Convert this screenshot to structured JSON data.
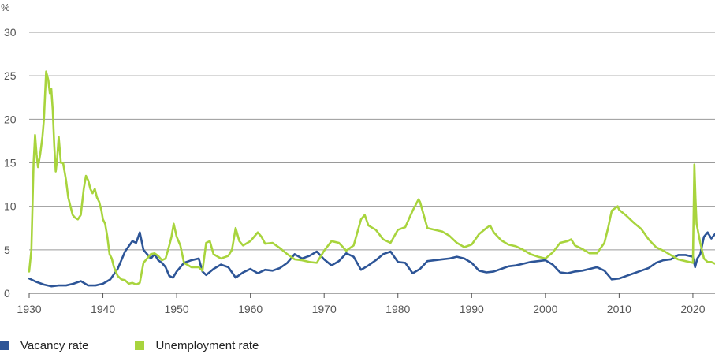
{
  "chart_data": {
    "type": "line",
    "title": "",
    "xlabel": "",
    "ylabel": "%",
    "xlim": [
      1930,
      2023
    ],
    "ylim": [
      0,
      30
    ],
    "grid": true,
    "legend_position": "bottom-left",
    "x_ticks": [
      1930,
      1940,
      1950,
      1960,
      1970,
      1980,
      1990,
      2000,
      2010,
      2020
    ],
    "y_ticks": [
      0,
      5,
      10,
      15,
      20,
      25,
      30
    ],
    "series": [
      {
        "name": "Vacancy rate",
        "color": "#2d5597",
        "x": [
          1930,
          1931,
          1932,
          1933,
          1934,
          1935,
          1936,
          1937,
          1938,
          1939,
          1940,
          1941,
          1942,
          1943,
          1944,
          1944.5,
          1945,
          1945.5,
          1946,
          1946.5,
          1947,
          1947.5,
          1948,
          1948.5,
          1949,
          1949.5,
          1950,
          1951,
          1952,
          1953,
          1953.5,
          1954,
          1955,
          1956,
          1957,
          1958,
          1959,
          1960,
          1961,
          1962,
          1963,
          1964,
          1965,
          1966,
          1967,
          1968,
          1969,
          1970,
          1971,
          1972,
          1973,
          1974,
          1975,
          1976,
          1977,
          1978,
          1979,
          1980,
          1981,
          1982,
          1983,
          1984,
          1985,
          1986,
          1987,
          1988,
          1989,
          1990,
          1991,
          1992,
          1993,
          1994,
          1995,
          1996,
          1997,
          1998,
          1999,
          2000,
          2001,
          2002,
          2003,
          2004,
          2005,
          2006,
          2007,
          2008,
          2009,
          2010,
          2011,
          2012,
          2013,
          2014,
          2015,
          2016,
          2017,
          2018,
          2019,
          2020,
          2020.3,
          2020.6,
          2021,
          2021.5,
          2022,
          2022.5,
          2023
        ],
        "values": [
          1.7,
          1.3,
          1.0,
          0.8,
          0.9,
          0.9,
          1.1,
          1.4,
          0.9,
          0.9,
          1.1,
          1.6,
          2.8,
          4.8,
          6.0,
          5.8,
          7.0,
          5.0,
          4.5,
          4.0,
          4.5,
          3.8,
          3.5,
          3.0,
          2.0,
          1.8,
          2.5,
          3.5,
          3.8,
          4.0,
          2.5,
          2.1,
          2.8,
          3.3,
          3.0,
          1.8,
          2.4,
          2.8,
          2.3,
          2.7,
          2.6,
          2.9,
          3.5,
          4.5,
          4.0,
          4.3,
          4.8,
          3.9,
          3.2,
          3.7,
          4.6,
          4.2,
          2.7,
          3.2,
          3.8,
          4.5,
          4.8,
          3.6,
          3.5,
          2.3,
          2.8,
          3.7,
          3.8,
          3.9,
          4.0,
          4.2,
          4.0,
          3.5,
          2.6,
          2.4,
          2.5,
          2.8,
          3.1,
          3.2,
          3.4,
          3.6,
          3.7,
          3.8,
          3.3,
          2.4,
          2.3,
          2.5,
          2.6,
          2.8,
          3.0,
          2.6,
          1.6,
          1.7,
          2.0,
          2.3,
          2.6,
          2.9,
          3.5,
          3.8,
          3.9,
          4.4,
          4.4,
          4.2,
          3.0,
          4.0,
          4.5,
          6.5,
          7.0,
          6.3,
          6.8
        ]
      },
      {
        "name": "Unemployment rate",
        "color": "#a8d43d",
        "x": [
          1930,
          1930.3,
          1930.6,
          1930.8,
          1931,
          1931.2,
          1931.5,
          1931.8,
          1932,
          1932.3,
          1932.6,
          1932.8,
          1933,
          1933.2,
          1933.4,
          1933.6,
          1933.8,
          1934,
          1934.3,
          1934.6,
          1934.8,
          1935,
          1935.3,
          1935.6,
          1935.9,
          1936.2,
          1936.6,
          1937,
          1937.4,
          1937.7,
          1938,
          1938.3,
          1938.6,
          1938.9,
          1939.2,
          1939.5,
          1939.8,
          1940,
          1940.3,
          1940.6,
          1940.9,
          1941.2,
          1941.5,
          1942,
          1942.5,
          1943,
          1943.5,
          1944,
          1944.5,
          1945,
          1945.5,
          1946,
          1946.5,
          1947,
          1947.5,
          1948,
          1948.5,
          1949,
          1949.3,
          1949.6,
          1950,
          1950.5,
          1951,
          1952,
          1953,
          1953.5,
          1954,
          1954.5,
          1955,
          1956,
          1957,
          1957.5,
          1958,
          1958.5,
          1959,
          1960,
          1961,
          1961.5,
          1962,
          1963,
          1964,
          1965,
          1966,
          1967,
          1968,
          1969,
          1970,
          1971,
          1972,
          1973,
          1974,
          1975,
          1975.5,
          1976,
          1977,
          1978,
          1979,
          1980,
          1981,
          1982,
          1982.8,
          1983,
          1984,
          1985,
          1986,
          1987,
          1988,
          1989,
          1990,
          1991,
          1992,
          1992.5,
          1993,
          1994,
          1995,
          1996,
          1997,
          1998,
          1999,
          2000,
          2001,
          2002,
          2003,
          2003.5,
          2004,
          2005,
          2006,
          2007,
          2008,
          2008.5,
          2009,
          2009.8,
          2010,
          2011,
          2012,
          2013,
          2014,
          2015,
          2016,
          2017,
          2018,
          2019,
          2020,
          2020.2,
          2020.35,
          2020.5,
          2020.8,
          2021,
          2021.5,
          2022,
          2022.5,
          2023
        ],
        "values": [
          2.5,
          5.0,
          15.0,
          18.2,
          16.0,
          14.5,
          16.0,
          18.0,
          20.0,
          25.5,
          24.5,
          23.0,
          23.5,
          21.0,
          17.0,
          14.0,
          15.5,
          18.0,
          15.0,
          15.0,
          14.0,
          13.0,
          11.0,
          10.0,
          9.0,
          8.7,
          8.5,
          9.0,
          12.0,
          13.5,
          13.0,
          12.0,
          11.5,
          12.0,
          11.0,
          10.5,
          9.5,
          8.5,
          8.0,
          6.5,
          4.5,
          4.0,
          3.0,
          2.0,
          1.6,
          1.5,
          1.1,
          1.2,
          1.0,
          1.2,
          3.5,
          4.0,
          4.5,
          4.6,
          4.3,
          3.8,
          4.0,
          5.5,
          6.5,
          8.0,
          6.5,
          5.5,
          3.5,
          3.0,
          3.0,
          2.6,
          5.8,
          6.0,
          4.5,
          4.0,
          4.3,
          5.0,
          7.5,
          6.0,
          5.5,
          6.0,
          7.0,
          6.5,
          5.7,
          5.8,
          5.2,
          4.5,
          3.9,
          3.8,
          3.6,
          3.5,
          4.9,
          6.0,
          5.8,
          4.9,
          5.5,
          8.5,
          9.0,
          7.8,
          7.3,
          6.2,
          5.8,
          7.3,
          7.6,
          9.5,
          10.8,
          10.5,
          7.5,
          7.3,
          7.1,
          6.6,
          5.8,
          5.3,
          5.6,
          6.8,
          7.5,
          7.8,
          7.0,
          6.1,
          5.6,
          5.4,
          5.0,
          4.5,
          4.2,
          4.0,
          4.7,
          5.8,
          6.0,
          6.2,
          5.5,
          5.1,
          4.6,
          4.6,
          5.8,
          7.5,
          9.5,
          10.0,
          9.6,
          8.9,
          8.1,
          7.4,
          6.2,
          5.3,
          4.9,
          4.4,
          3.9,
          3.7,
          3.5,
          14.8,
          11.0,
          8.0,
          6.7,
          5.8,
          4.0,
          3.6,
          3.6,
          3.4
        ]
      }
    ]
  }
}
